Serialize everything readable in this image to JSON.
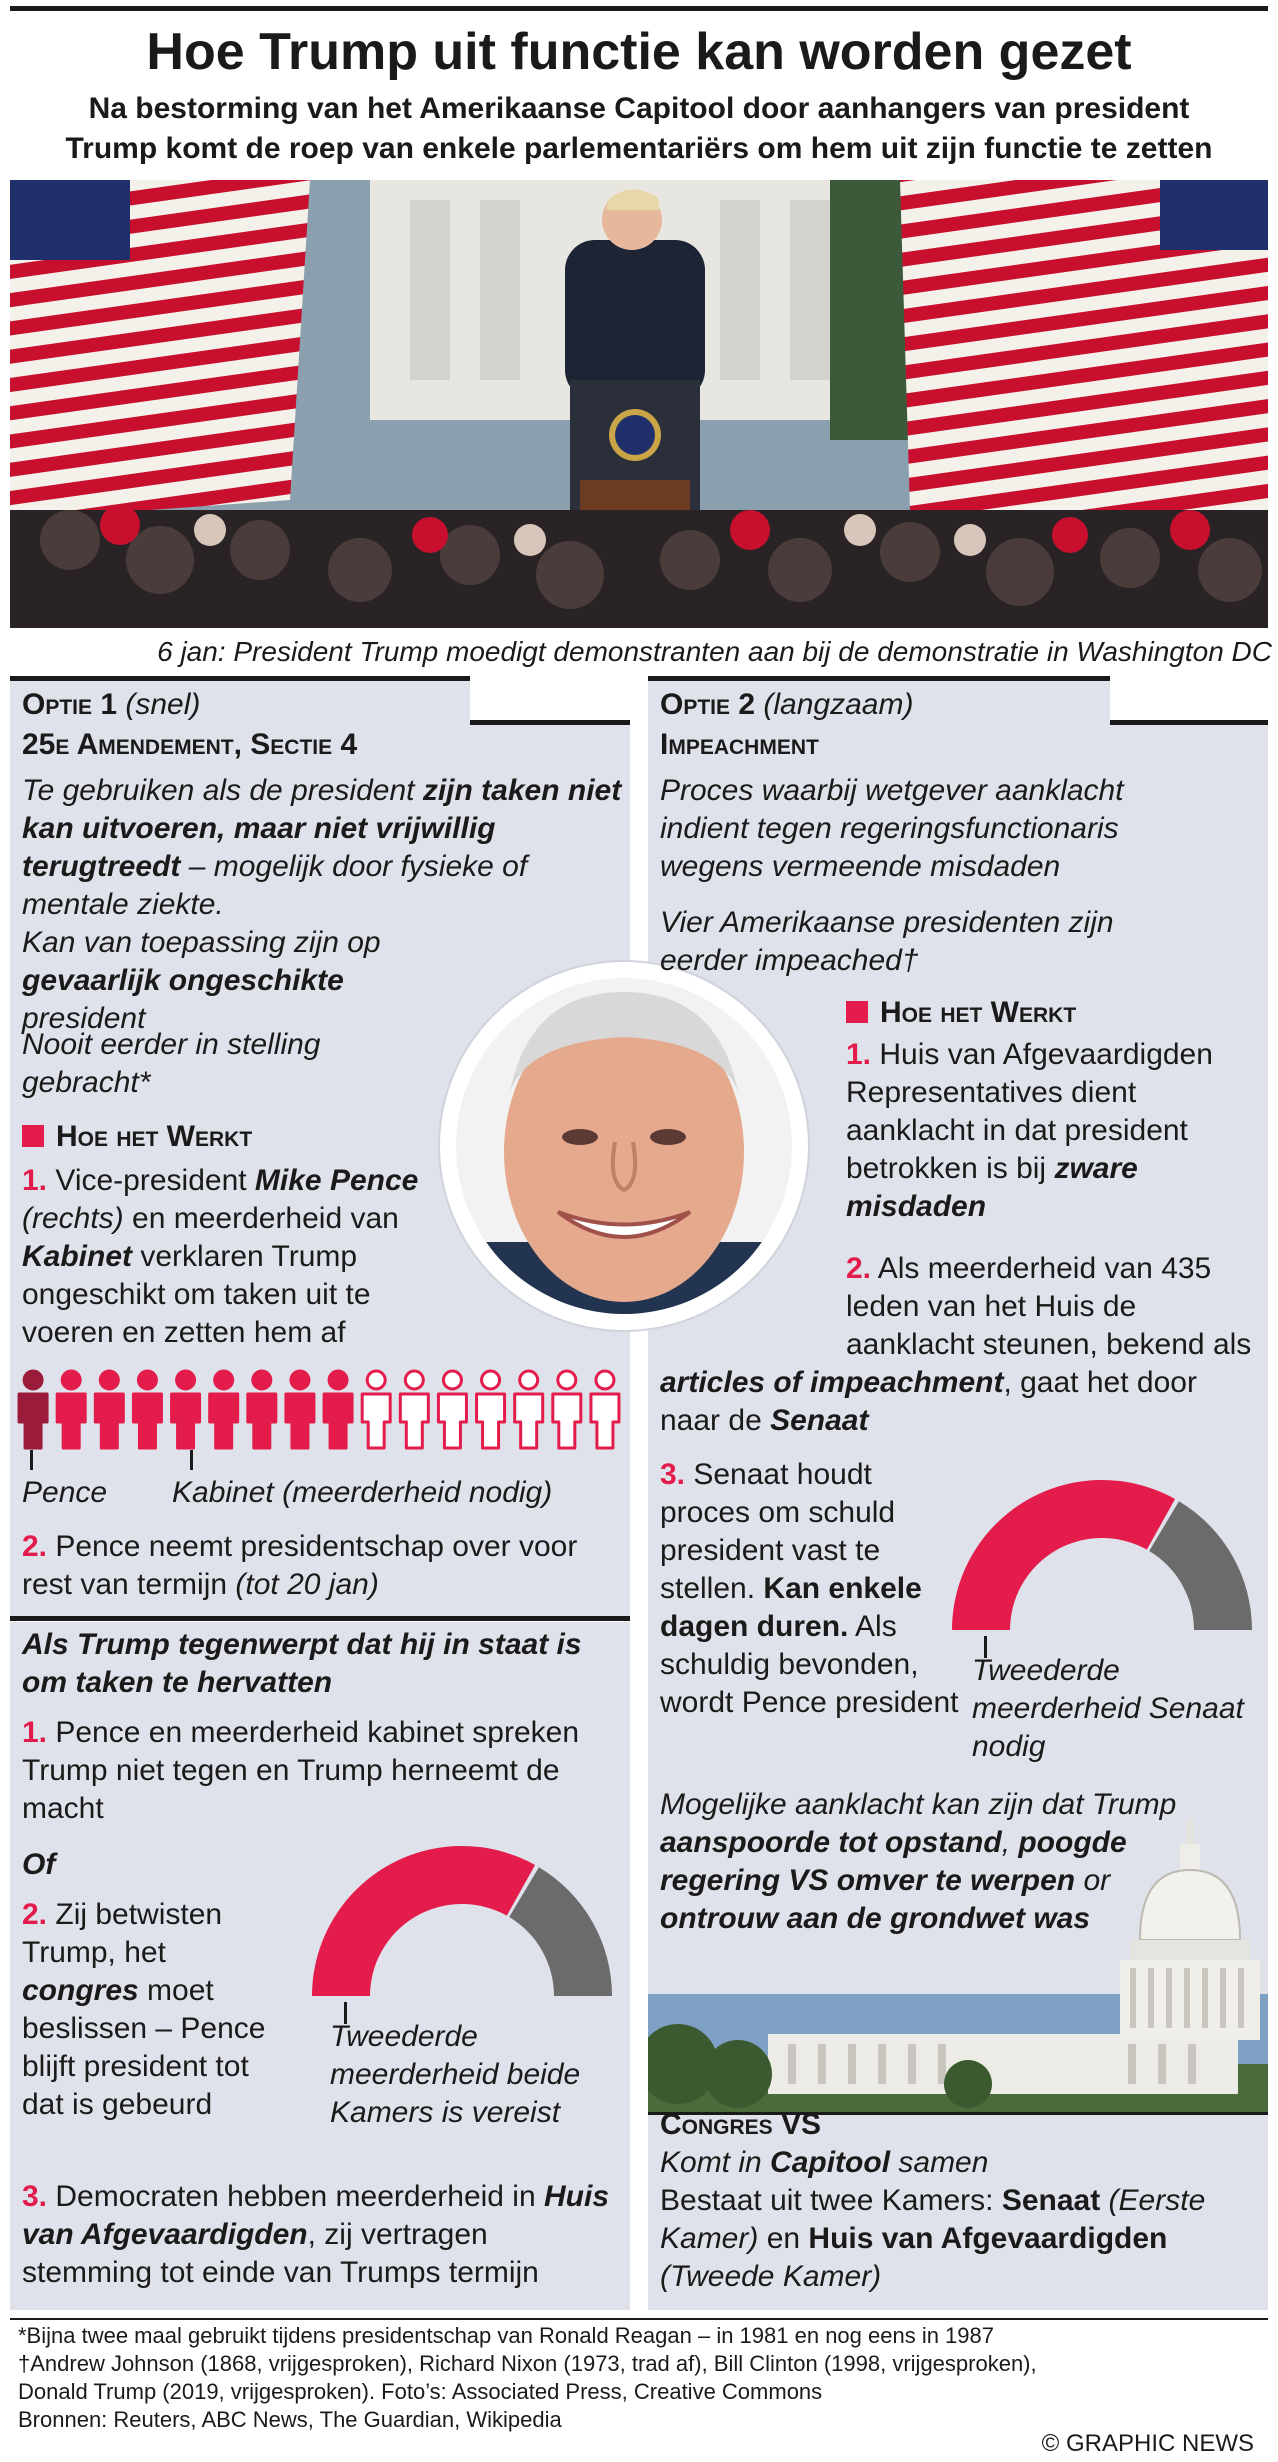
{
  "title": "Hoe Trump uit functie kan worden gezet",
  "subtitle_line1": "Na bestorming van het Amerikaanse Capitool door aanhangers van president",
  "subtitle_line2": "Trump komt de roep van enkele parlementariërs om hem uit zijn functie te zetten",
  "photo_caption": "6 jan: President Trump moedigt demonstranten aan bij de demonstratie in Washington DC",
  "option1": {
    "label": "Optie 1",
    "speed": "(snel)",
    "name": "25e Amendement, Sectie 4",
    "desc_a": "Te gebruiken als de president ",
    "desc_b": "zijn taken niet kan uitvoeren, maar niet vrijwillig terugtreedt",
    "desc_c": " – mogelijk door fysieke of mentale ziekte.",
    "apply_a": "Kan van toepassing zijn op ",
    "apply_b": "gevaarlijk ongeschikte",
    "apply_c": " president",
    "never": "Nooit eerder in stelling gebracht*",
    "how": "Hoe het Werkt",
    "step1_num": "1.",
    "step1_a": " Vice-president ",
    "step1_b": "Mike Pence",
    "step1_c": " (rechts)",
    "step1_d": " en meerderheid van ",
    "step1_e": "Kabinet",
    "step1_f": " verklaren Trump ongeschikt om taken uit te voeren en zetten hem af",
    "pence_label": "Pence",
    "cabinet_label": "Kabinet (meerderheid nodig)",
    "step2_num": "2.",
    "step2_a": " Pence neemt presidentschap over voor rest van termijn ",
    "step2_b": "(tot 20 jan)",
    "contest_head": "Als Trump tegenwerpt dat hij in staat is om taken te hervatten",
    "c1_num": "1.",
    "c1_text": " Pence en meerderheid kabinet spreken Trump niet tegen en Trump herneemt de macht",
    "of": "Of",
    "c2_num": "2.",
    "c2_a": " Zij betwisten Trump, het ",
    "c2_b": "congres",
    "c2_c": " moet beslissen – Pence blijft president tot dat is gebeurd",
    "c2_gauge_label": "Tweederde meerderheid beide Kamers is vereist",
    "c3_num": "3.",
    "c3_a": " Democraten hebben meerderheid in ",
    "c3_b": "Huis van Afgevaardigden",
    "c3_c": ", zij vertragen stemming tot einde van Trumps termijn"
  },
  "option2": {
    "label": "Optie 2",
    "speed": "(langzaam)",
    "name": "Impeachment",
    "desc": "Proces waarbij wetgever aanklacht indient tegen regeringsfunctionaris wegens vermeende misdaden",
    "four": "Vier Amerikaanse presidenten zijn eerder impeached†",
    "how": "Hoe het Werkt",
    "s1_num": "1.",
    "s1_a": " Huis van Afgevaardigden Representatives dient aanklacht in dat president betrokken is bij ",
    "s1_b": "zware misdaden",
    "s2_num": "2.",
    "s2_a": " Als meerderheid van 435 leden van het Huis de aanklacht steunen, bekend als ",
    "s2_b": "articles of impeachment",
    "s2_c": ", gaat het door naar de ",
    "s2_d": "Senaat",
    "s3_num": "3.",
    "s3_a": " Senaat houdt proces om schuld president vast te stellen.",
    "s3_b": "Kan enkele dagen duren.",
    "s3_c": " Als schuldig bevonden, wordt Pence president",
    "s3_gauge_label": "Tweederde meerderheid Senaat nodig",
    "charge_a": "Mogelijke aanklacht kan zijn dat Trump ",
    "charge_b": "aanspoorde tot opstand",
    "charge_c": ", ",
    "charge_d": "poogde regering VS omver te werpen",
    "charge_e": " or ",
    "charge_f": "ontrouw aan de grondwet was",
    "congress_head": "Congres VS",
    "congress_a": "Komt in ",
    "congress_b": "Capitool",
    "congress_c": " samen",
    "congress_d": "Bestaat uit twee Kamers: ",
    "congress_e": "Senaat",
    "congress_f": " (Eerste Kamer)",
    "congress_g": " en ",
    "congress_h": "Huis van Afgevaardigden",
    "congress_i": " (Tweede Kamer)"
  },
  "gauge_c2": {
    "fraction": 0.6667
  },
  "gauge_s3": {
    "fraction": 0.6667
  },
  "cabinet_icons": {
    "total": 16,
    "filled": 9
  },
  "footnotes": {
    "f1": "*Bijna twee maal gebruikt tijdens presidentschap van Ronald Reagan – in 1981 en nog eens in 1987",
    "f2": "†Andrew Johnson (1868, vrijgesproken), Richard Nixon (1973, trad af), Bill Clinton (1998, vrijgesproken),",
    "f3": "Donald Trump (2019, vrijgesproken). Foto’s: Associated Press, Creative Commons",
    "f4": "Bronnen: Reuters, ABC News, The Guardian, Wikipedia",
    "copyright": "© GRAPHIC NEWS"
  },
  "colors": {
    "accent": "#e31c4b",
    "dark_red": "#9b1b3a",
    "grey": "#6b6b6b",
    "panel": "#dfe2ea"
  }
}
